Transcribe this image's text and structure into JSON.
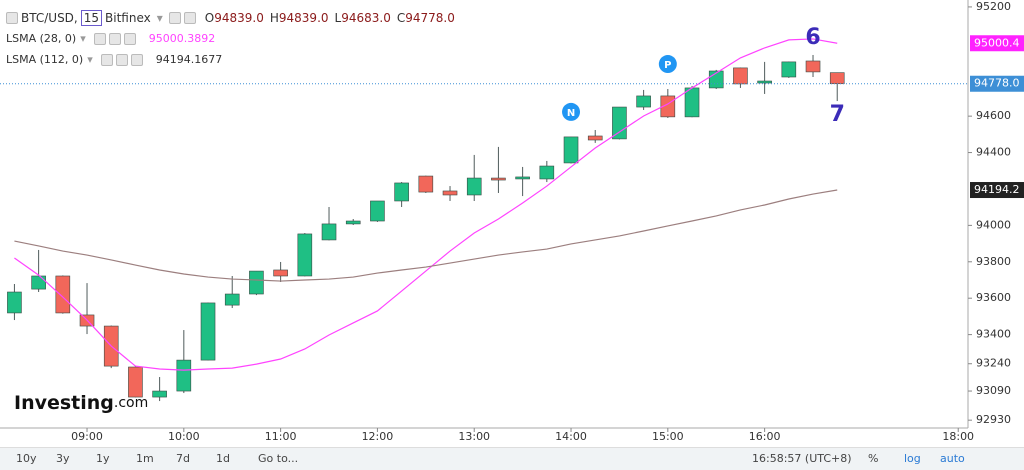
{
  "header": {
    "symbol": "BTC/USD,",
    "interval": "15",
    "exchange": "Bitfinex",
    "ohlc": [
      {
        "key": "O",
        "value": "94839.0"
      },
      {
        "key": "H",
        "value": "94839.0"
      },
      {
        "key": "L",
        "value": "94683.0"
      },
      {
        "key": "C",
        "value": "94778.0"
      }
    ]
  },
  "watermark": {
    "main": "Investing",
    "suffix": ".com"
  },
  "toolbar": {
    "ranges": [
      "10y",
      "3y",
      "1y",
      "1m",
      "7d",
      "1d"
    ],
    "goto": "Go to...",
    "clock": "16:58:57 (UTC+8)",
    "options": [
      "%",
      "log",
      "auto"
    ]
  },
  "chart_data": {
    "type": "candlestick",
    "x": [
      8.25,
      8.5,
      8.75,
      9,
      9.25,
      9.5,
      9.75,
      10,
      10.25,
      10.5,
      10.75,
      11,
      11.25,
      11.5,
      11.75,
      12,
      12.25,
      12.5,
      12.75,
      13,
      13.25,
      13.5,
      13.75,
      14,
      14.25,
      14.5,
      14.75,
      15,
      15.25,
      15.5,
      15.75,
      16,
      16.25,
      16.5,
      16.75
    ],
    "open": [
      93519,
      93650,
      93722,
      93508,
      93447,
      93222,
      93057,
      93090,
      93260,
      93562,
      93623,
      93755,
      93722,
      93920,
      94008,
      94024,
      94134,
      94271,
      94189,
      94167,
      94260,
      94255,
      94255,
      94343,
      94491,
      94475,
      94650,
      94711,
      94596,
      94755,
      94865,
      94782,
      94815,
      94903,
      94839
    ],
    "high": [
      93678,
      93865,
      93725,
      93683,
      93450,
      93225,
      93167,
      93425,
      93576,
      93722,
      93749,
      93799,
      93958,
      94101,
      94035,
      94134,
      94238,
      94273,
      94216,
      94387,
      94431,
      94321,
      94354,
      94486,
      94524,
      94650,
      94744,
      94749,
      94766,
      94854,
      94867,
      94898,
      94900,
      94936,
      94839
    ],
    "low": [
      93480,
      93634,
      93515,
      93403,
      93216,
      93055,
      93035,
      93079,
      93258,
      93546,
      93617,
      93689,
      93720,
      93918,
      94002,
      94019,
      94101,
      94178,
      94134,
      94134,
      94178,
      94161,
      94238,
      94340,
      94453,
      94472,
      94634,
      94590,
      94594,
      94749,
      94755,
      94722,
      94810,
      94815,
      94683
    ],
    "close": [
      93634,
      93722,
      93519,
      93447,
      93227,
      93057,
      93090,
      93260,
      93574,
      93623,
      93749,
      93722,
      93953,
      94008,
      94024,
      94134,
      94233,
      94183,
      94167,
      94260,
      94249,
      94266,
      94326,
      94486,
      94469,
      94650,
      94711,
      94596,
      94755,
      94848,
      94777,
      94793,
      94898,
      94843,
      94778
    ],
    "up_color": "#1fbf84",
    "down_color": "#f2675a",
    "wick_color": "#4f5b5b",
    "series": [
      {
        "name": "LSMA (28, 0)",
        "color": "#ff44ff",
        "last_label": "95000.3892",
        "values": [
          93821,
          93727,
          93606,
          93480,
          93337,
          93227,
          93211,
          93205,
          93211,
          93216,
          93238,
          93266,
          93321,
          93398,
          93464,
          93530,
          93639,
          93749,
          93859,
          93958,
          94035,
          94123,
          94216,
          94321,
          94425,
          94513,
          94601,
          94667,
          94755,
          94837,
          94920,
          94975,
          95019,
          95024,
          95000.4
        ]
      },
      {
        "name": "LSMA (112, 0)",
        "color": "#9c7f7f",
        "last_label": "94194.1677",
        "values": [
          93914,
          93887,
          93859,
          93837,
          93810,
          93782,
          93755,
          93733,
          93716,
          93705,
          93700,
          93694,
          93700,
          93705,
          93716,
          93738,
          93755,
          93771,
          93793,
          93815,
          93837,
          93854,
          93870,
          93898,
          93920,
          93942,
          93969,
          93997,
          94024,
          94052,
          94085,
          94112,
          94145,
          94172,
          94194.2
        ]
      }
    ],
    "xlim": [
      8.101,
      18.101
    ],
    "xticks": [
      {
        "value": 9,
        "label": "09:00"
      },
      {
        "value": 10,
        "label": "10:00"
      },
      {
        "value": 11,
        "label": "11:00"
      },
      {
        "value": 12,
        "label": "12:00"
      },
      {
        "value": 13,
        "label": "13:00"
      },
      {
        "value": 14,
        "label": "14:00"
      },
      {
        "value": 15,
        "label": "15:00"
      },
      {
        "value": 16,
        "label": "16:00"
      },
      {
        "value": 18,
        "label": "18:00"
      }
    ],
    "ylim": [
      92887,
      95238
    ],
    "yticks": [
      95200,
      94600,
      94400,
      94000,
      93800,
      93600,
      93400,
      93240,
      93090,
      92930
    ],
    "price_labels": [
      {
        "value": 95000.4,
        "label": "95000.4",
        "color": "#ff22ff"
      },
      {
        "value": 94778,
        "label": "94778.0",
        "color": "#3d8fd6"
      },
      {
        "value": 94194.2,
        "label": "94194.2",
        "color": "#222"
      }
    ],
    "annotations": [
      {
        "text": "N",
        "x": 14,
        "style": "badge",
        "color": "#2196f3"
      },
      {
        "text": "P",
        "x": 15,
        "style": "badge",
        "color": "#2196f3"
      },
      {
        "text": "6",
        "x": 16.5,
        "style": "above",
        "color": "#3b2bb8"
      },
      {
        "text": "7",
        "x": 16.75,
        "style": "below",
        "color": "#3b2bb8"
      }
    ]
  }
}
